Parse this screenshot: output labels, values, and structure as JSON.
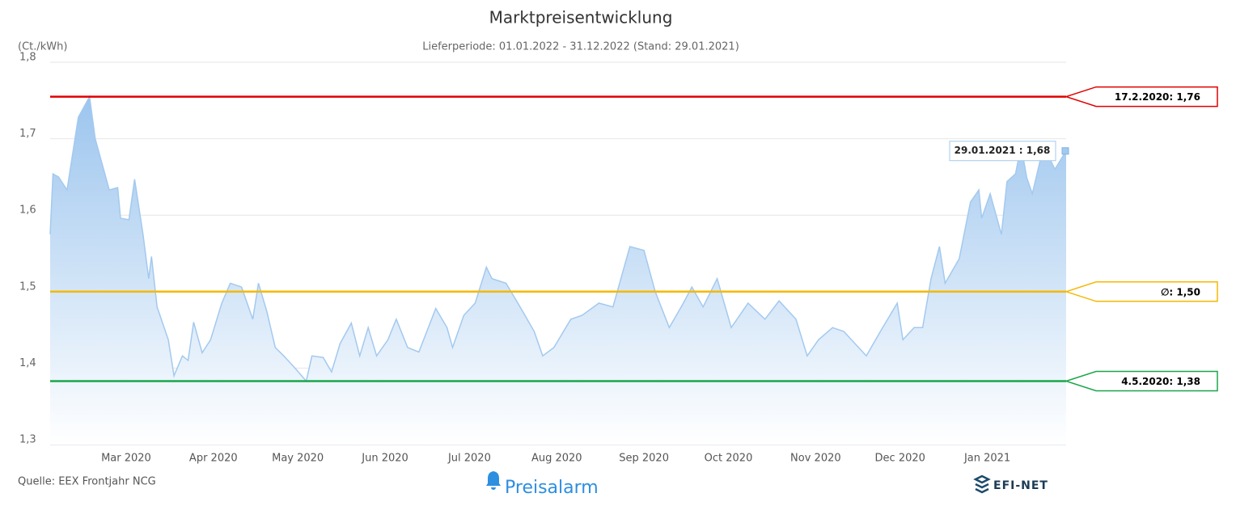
{
  "chart_data": {
    "type": "area",
    "title": "Marktpreisentwicklung",
    "subtitle": "Lieferperiode: 01.01.2022 - 31.12.2022 (Stand: 29.01.2021)",
    "y_label": "(Ct./kWh)",
    "source": "Quelle: EEX Frontjahr NCG",
    "button": "Preisalarm",
    "logo": "EFI-NET",
    "color": "#a3c9ef",
    "grid": true,
    "ylim": [
      1.3,
      1.8
    ],
    "yticks": [
      {
        "value": 1.3,
        "label": "1,3"
      },
      {
        "value": 1.4,
        "label": "1,4"
      },
      {
        "value": 1.5,
        "label": "1,5"
      },
      {
        "value": 1.6,
        "label": "1,6"
      },
      {
        "value": 1.7,
        "label": "1,7"
      },
      {
        "value": 1.8,
        "label": "1,8"
      }
    ],
    "xlim": [
      "2020-02-03",
      "2021-01-29"
    ],
    "xticks": [
      {
        "value": "2020-03-01",
        "label": "Mar 2020"
      },
      {
        "value": "2020-04-01",
        "label": "Apr 2020"
      },
      {
        "value": "2020-05-01",
        "label": "May 2020"
      },
      {
        "value": "2020-06-01",
        "label": "Jun 2020"
      },
      {
        "value": "2020-07-01",
        "label": "Jul 2020"
      },
      {
        "value": "2020-08-01",
        "label": "Aug 2020"
      },
      {
        "value": "2020-09-01",
        "label": "Sep 2020"
      },
      {
        "value": "2020-10-01",
        "label": "Oct 2020"
      },
      {
        "value": "2020-11-01",
        "label": "Nov 2020"
      },
      {
        "value": "2020-12-01",
        "label": "Dec 2020"
      },
      {
        "value": "2021-01-01",
        "label": "Jan 2021"
      }
    ],
    "x": [
      "2020-02-03",
      "2020-02-04",
      "2020-02-06",
      "2020-02-09",
      "2020-02-13",
      "2020-02-17",
      "2020-02-19",
      "2020-02-24",
      "2020-02-27",
      "2020-02-28",
      "2020-03-02",
      "2020-03-04",
      "2020-03-07",
      "2020-03-09",
      "2020-03-10",
      "2020-03-12",
      "2020-03-16",
      "2020-03-18",
      "2020-03-21",
      "2020-03-23",
      "2020-03-25",
      "2020-03-28",
      "2020-03-31",
      "2020-04-04",
      "2020-04-07",
      "2020-04-11",
      "2020-04-15",
      "2020-04-17",
      "2020-04-20",
      "2020-04-23",
      "2020-04-26",
      "2020-04-30",
      "2020-05-04",
      "2020-05-06",
      "2020-05-10",
      "2020-05-13",
      "2020-05-16",
      "2020-05-20",
      "2020-05-23",
      "2020-05-26",
      "2020-05-29",
      "2020-06-02",
      "2020-06-05",
      "2020-06-09",
      "2020-06-13",
      "2020-06-19",
      "2020-06-23",
      "2020-06-25",
      "2020-06-29",
      "2020-07-03",
      "2020-07-07",
      "2020-07-09",
      "2020-07-14",
      "2020-07-19",
      "2020-07-24",
      "2020-07-27",
      "2020-07-31",
      "2020-08-06",
      "2020-08-10",
      "2020-08-16",
      "2020-08-21",
      "2020-08-27",
      "2020-09-01",
      "2020-09-05",
      "2020-09-10",
      "2020-09-15",
      "2020-09-18",
      "2020-09-22",
      "2020-09-27",
      "2020-10-02",
      "2020-10-08",
      "2020-10-14",
      "2020-10-19",
      "2020-10-25",
      "2020-10-29",
      "2020-11-02",
      "2020-11-07",
      "2020-11-11",
      "2020-11-19",
      "2020-11-24",
      "2020-11-30",
      "2020-12-02",
      "2020-12-06",
      "2020-12-09",
      "2020-12-12",
      "2020-12-15",
      "2020-12-17",
      "2020-12-22",
      "2020-12-26",
      "2020-12-29",
      "2020-12-30",
      "2021-01-02",
      "2021-01-06",
      "2021-01-08",
      "2021-01-11",
      "2021-01-13",
      "2021-01-15",
      "2021-01-17",
      "2021-01-21",
      "2021-01-25",
      "2021-01-29"
    ],
    "values": [
      1.575,
      1.654,
      1.65,
      1.633,
      1.728,
      1.755,
      1.7,
      1.633,
      1.636,
      1.596,
      1.594,
      1.647,
      1.575,
      1.517,
      1.546,
      1.48,
      1.437,
      1.39,
      1.416,
      1.41,
      1.46,
      1.42,
      1.437,
      1.485,
      1.511,
      1.506,
      1.464,
      1.511,
      1.474,
      1.427,
      1.416,
      1.4,
      1.383,
      1.416,
      1.414,
      1.395,
      1.432,
      1.459,
      1.416,
      1.453,
      1.416,
      1.437,
      1.464,
      1.427,
      1.421,
      1.478,
      1.453,
      1.427,
      1.469,
      1.485,
      1.532,
      1.517,
      1.511,
      1.48,
      1.448,
      1.416,
      1.427,
      1.464,
      1.469,
      1.485,
      1.48,
      1.559,
      1.554,
      1.5,
      1.453,
      1.485,
      1.506,
      1.48,
      1.517,
      1.453,
      1.485,
      1.464,
      1.488,
      1.464,
      1.416,
      1.437,
      1.453,
      1.448,
      1.416,
      1.448,
      1.485,
      1.437,
      1.453,
      1.453,
      1.517,
      1.559,
      1.511,
      1.543,
      1.617,
      1.633,
      1.596,
      1.628,
      1.575,
      1.644,
      1.654,
      1.691,
      1.649,
      1.628,
      1.691,
      1.66,
      1.684
    ],
    "reference_lines": [
      {
        "value": 1.755,
        "label": "17.2.2020: 1,76",
        "color": "#e00000"
      },
      {
        "value": 1.5,
        "label": "∅: 1,50",
        "color": "#f5b800"
      },
      {
        "value": 1.383,
        "label": "4.5.2020: 1,38",
        "color": "#1aa64a"
      }
    ],
    "tooltip": "29.01.2021 : 1,68"
  }
}
